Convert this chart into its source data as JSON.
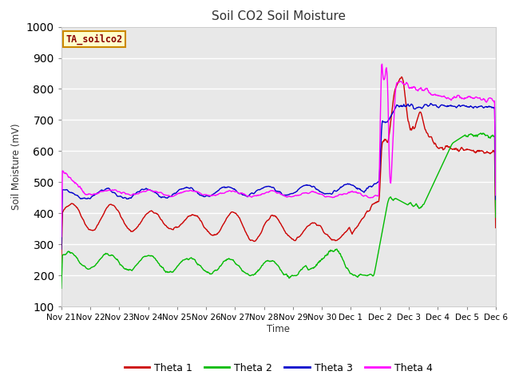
{
  "title": "Soil CO2 Soil Moisture",
  "ylabel": "Soil Moisture (mV)",
  "xlabel": "Time",
  "annotation_text": "TA_soilco2",
  "annotation_bg": "#ffffcc",
  "annotation_border": "#cc8800",
  "ylim": [
    100,
    1000
  ],
  "yticks": [
    100,
    200,
    300,
    400,
    500,
    600,
    700,
    800,
    900,
    1000
  ],
  "fig_bg": "#ffffff",
  "plot_bg": "#e8e8e8",
  "grid_color": "#ffffff",
  "line_colors": {
    "theta1": "#cc0000",
    "theta2": "#00bb00",
    "theta3": "#0000cc",
    "theta4": "#ff00ff"
  },
  "legend_labels": [
    "Theta 1",
    "Theta 2",
    "Theta 3",
    "Theta 4"
  ],
  "xtick_labels": [
    "Nov 21",
    "Nov 22",
    "Nov 23",
    "Nov 24",
    "Nov 25",
    "Nov 26",
    "Nov 27",
    "Nov 28",
    "Nov 29",
    "Nov 30",
    "Dec 1",
    "Dec 2",
    "Dec 3",
    "Dec 4",
    "Dec 5",
    "Dec 6"
  ]
}
